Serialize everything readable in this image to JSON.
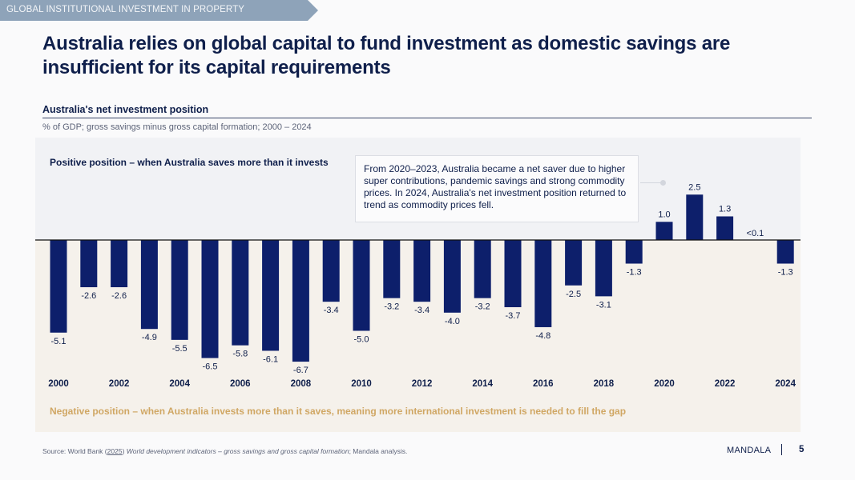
{
  "header": {
    "section_tag": "GLOBAL INSTITUTIONAL INVESTMENT IN PROPERTY",
    "title": "Australia relies on global capital to fund investment as domestic savings are insufficient for its capital requirements"
  },
  "colors": {
    "bar": "#0d1f6b",
    "positive_panel": "#f1f2f5",
    "negative_panel": "#f5f1eb",
    "negative_caption": "#d0a764",
    "text_primary": "#0f1f4b",
    "section_tag": "#8ea3b9"
  },
  "chart_data": {
    "type": "bar",
    "title": "Australia's net investment position",
    "subtitle": "% of GDP; gross savings minus gross capital formation; 2000 – 2024",
    "xlabel": "",
    "ylabel": "% of GDP",
    "categories": [
      "2000",
      "2001",
      "2002",
      "2003",
      "2004",
      "2005",
      "2006",
      "2007",
      "2008",
      "2009",
      "2010",
      "2011",
      "2012",
      "2013",
      "2014",
      "2015",
      "2016",
      "2017",
      "2018",
      "2019",
      "2020",
      "2021",
      "2022",
      "2023",
      "2024"
    ],
    "values": [
      -5.1,
      -2.6,
      -2.6,
      -4.9,
      -5.5,
      -6.5,
      -5.8,
      -6.1,
      -6.7,
      -3.4,
      -5.0,
      -3.2,
      -3.4,
      -4.0,
      -3.2,
      -3.7,
      -4.8,
      -2.5,
      -3.1,
      -1.3,
      1.0,
      2.5,
      1.3,
      0.05,
      -1.3
    ],
    "data_labels": [
      "-5.1",
      "-2.6",
      "-2.6",
      "-4.9",
      "-5.5",
      "-6.5",
      "-5.8",
      "-6.1",
      "-6.7",
      "-3.4",
      "-5.0",
      "-3.2",
      "-3.4",
      "-4.0",
      "-3.2",
      "-3.7",
      "-4.8",
      "-2.5",
      "-3.1",
      "-1.3",
      "1.0",
      "2.5",
      "1.3",
      "<0.1",
      "-1.3"
    ],
    "x_tick_labels": [
      "2000",
      "2002",
      "2004",
      "2006",
      "2008",
      "2010",
      "2012",
      "2014",
      "2016",
      "2018",
      "2020",
      "2022",
      "2024"
    ],
    "ylim": [
      -7.1,
      5.6
    ],
    "grid": false,
    "legend": null,
    "annotations": {
      "positive_caption": "Positive position – when Australia saves more than it invests",
      "negative_caption": "Negative position – when Australia invests more than it saves, meaning more international investment is needed to fill the gap",
      "callout": "From 2020–2023, Australia became a net saver due to higher super contributions, pandemic savings and strong commodity prices. In 2024, Australia's net investment position returned to trend as commodity prices fell."
    }
  },
  "footer": {
    "source_prefix": "Source: World Bank (",
    "source_year": "2025",
    "source_close": ")",
    "source_title": " World development indicators – gross savings and gross capital formation",
    "source_suffix": "; Mandala analysis.",
    "brand": "MANDALA",
    "page_number": "5"
  }
}
